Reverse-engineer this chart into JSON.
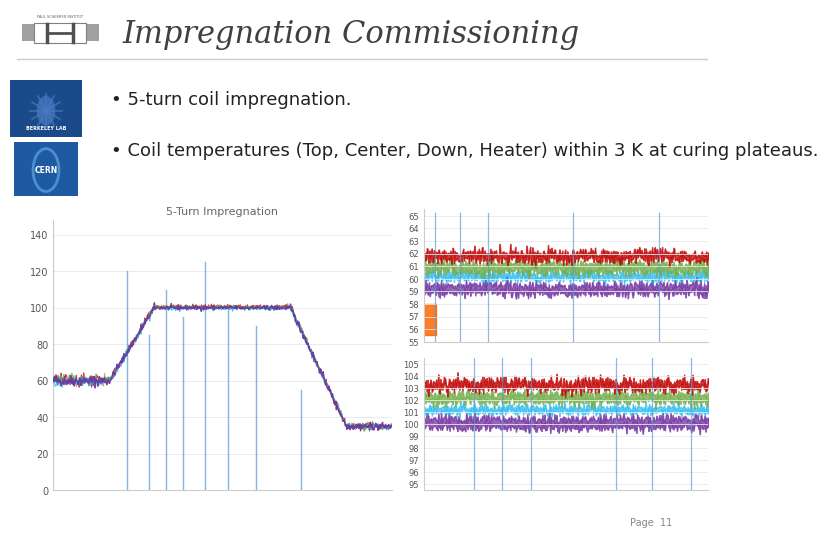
{
  "title": "Impregnation Commissioning",
  "bullet1": "5-turn coil impregnation.",
  "bullet2": "Coil temperatures (Top, Center, Down, Heater) within 3 K at curing plateaus.",
  "page_label": "Page  11",
  "bg_color": "#ffffff",
  "title_color": "#404040",
  "title_fontsize": 22,
  "bullet_fontsize": 13,
  "left_chart_title": "5-Turn Impregnation",
  "left_chart_yticks": [
    0,
    20,
    40,
    60,
    80,
    100,
    120,
    140
  ],
  "top_right_yticks": [
    55,
    56,
    57,
    58,
    59,
    60,
    61,
    62,
    63,
    64,
    65
  ],
  "bot_right_yticks": [
    95,
    96,
    97,
    98,
    99,
    100,
    101,
    102,
    103,
    104,
    105
  ],
  "line_color_blue": "#5B9BD5",
  "line_color_purple": "#7030A0",
  "line_color_red": "#C00000",
  "line_color_green": "#70AD47",
  "line_color_teal": "#00B0F0"
}
